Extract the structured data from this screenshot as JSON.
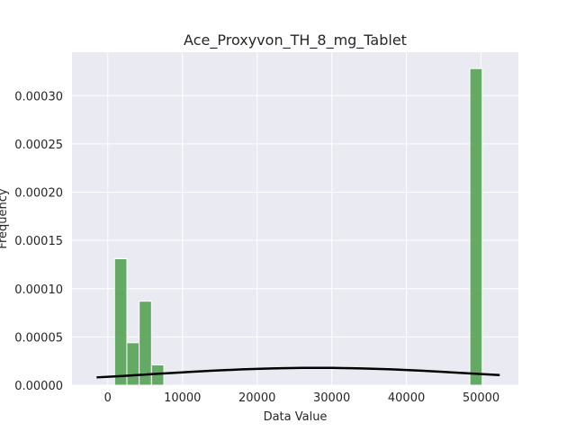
{
  "chart_data": {
    "type": "bar",
    "title": "Ace_Proxyvon_TH_8_mg_Tablet",
    "xlabel": "Data Value",
    "ylabel": "Frequency",
    "xlim": [
      -4800,
      55000
    ],
    "ylim": [
      0,
      0.000345
    ],
    "x_ticks": [
      0,
      10000,
      20000,
      30000,
      40000,
      50000
    ],
    "x_tick_labels": [
      "0",
      "10000",
      "20000",
      "30000",
      "40000",
      "50000"
    ],
    "y_ticks": [
      0,
      5e-05,
      0.0001,
      0.00015,
      0.0002,
      0.00025,
      0.0003
    ],
    "y_tick_labels": [
      "0.00000",
      "0.00005",
      "0.00010",
      "0.00015",
      "0.00020",
      "0.00025",
      "0.00030"
    ],
    "grid": true,
    "bar_color": "#4c9f4c",
    "curve_color": "#000000",
    "background_color": "#eaeaf2",
    "histogram": {
      "bin_edges": [
        900,
        2550,
        4200,
        5850,
        7500,
        48500,
        50150
      ],
      "bars": [
        {
          "x_start": 900,
          "x_end": 2550,
          "value": 0.000131
        },
        {
          "x_start": 2550,
          "x_end": 4200,
          "value": 4.4e-05
        },
        {
          "x_start": 4200,
          "x_end": 5850,
          "value": 8.7e-05
        },
        {
          "x_start": 5850,
          "x_end": 7500,
          "value": 2.1e-05
        },
        {
          "x_start": 48500,
          "x_end": 50150,
          "value": 0.000328
        }
      ]
    },
    "density_curve": {
      "x": [
        -1500,
        2000,
        6000,
        10000,
        14000,
        18000,
        22000,
        26000,
        28000,
        30000,
        34000,
        38000,
        42000,
        46000,
        50000,
        52500
      ],
      "y": [
        8.1e-06,
        9.6e-06,
        1.15e-05,
        1.33e-05,
        1.5e-05,
        1.64e-05,
        1.74e-05,
        1.79e-05,
        1.8e-05,
        1.79e-05,
        1.74e-05,
        1.64e-05,
        1.5e-05,
        1.33e-05,
        1.15e-05,
        1.05e-05
      ]
    }
  }
}
